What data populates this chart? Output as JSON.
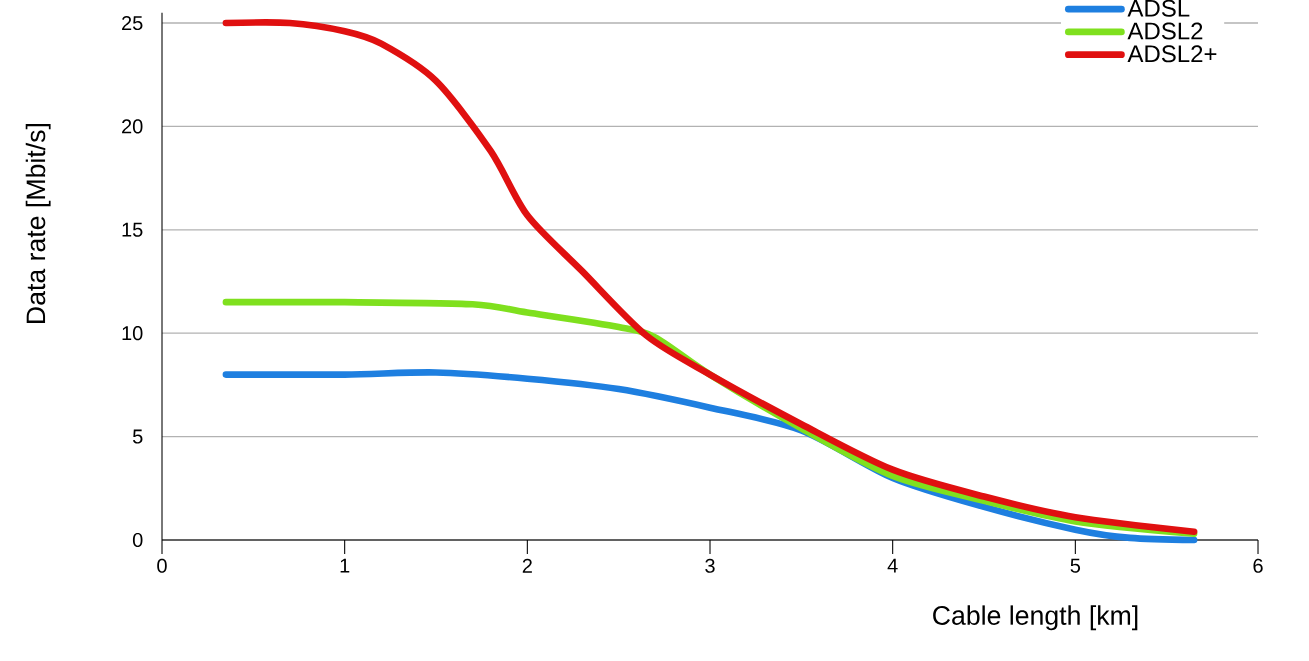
{
  "chart_data": {
    "type": "line",
    "xlabel": "Cable length [km]",
    "ylabel": "Data rate [Mbit/s]",
    "xlim": [
      0,
      6
    ],
    "xticks": [
      0,
      1,
      2,
      3,
      4,
      5,
      6
    ],
    "ylim": [
      0,
      25.5
    ],
    "yticks": [
      0,
      5,
      10,
      15,
      20,
      25
    ],
    "grid": "y",
    "legend": "top right",
    "line_style": "solid",
    "marker": "none",
    "series": [
      {
        "name": "ADSL",
        "color": "#1e7fe0",
        "x": [
          0.35,
          1.0,
          1.5,
          2.0,
          2.5,
          3.0,
          3.5,
          4.0,
          4.5,
          5.0,
          5.3,
          5.65
        ],
        "values": [
          8.0,
          8.0,
          8.1,
          7.8,
          7.3,
          6.4,
          5.3,
          3.0,
          1.6,
          0.5,
          0.1,
          0.0
        ]
      },
      {
        "name": "ADSL2",
        "color": "#7fe01e",
        "x": [
          0.35,
          1.0,
          1.7,
          2.0,
          2.5,
          2.7,
          3.0,
          3.5,
          4.0,
          4.5,
          5.0,
          5.65
        ],
        "values": [
          11.5,
          11.5,
          11.4,
          11.0,
          10.3,
          9.8,
          8.0,
          5.4,
          3.1,
          1.9,
          0.9,
          0.3
        ]
      },
      {
        "name": "ADSL2+",
        "color": "#e01010",
        "x": [
          0.35,
          0.7,
          1.0,
          1.2,
          1.5,
          1.8,
          2.0,
          2.3,
          2.65,
          3.0,
          3.5,
          4.0,
          4.5,
          5.0,
          5.65
        ],
        "values": [
          25.0,
          25.0,
          24.6,
          24.0,
          22.2,
          18.8,
          15.7,
          13.0,
          9.9,
          8.0,
          5.6,
          3.4,
          2.1,
          1.1,
          0.4
        ]
      }
    ]
  }
}
